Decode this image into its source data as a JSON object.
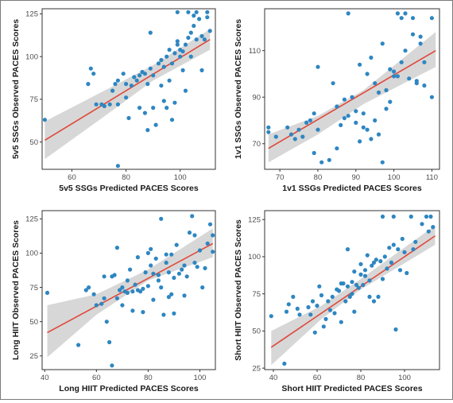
{
  "colors": {
    "points": "#2e86c1",
    "fit_line": "#e0483a",
    "ci_band": "#c9c9c9",
    "frame": "#333333"
  },
  "chart_data": [
    {
      "type": "scatter",
      "xlabel": "5v5 SSGs Predicted PACES Scores",
      "ylabel": "5v5 SSGs Observed PACES Scores",
      "xlim": [
        49,
        113
      ],
      "ylim": [
        34,
        128
      ],
      "xticks": [
        60,
        80,
        100
      ],
      "yticks": [
        50,
        75,
        100,
        125
      ],
      "grid": false,
      "fit": {
        "x": [
          50,
          111
        ],
        "y": [
          51,
          110
        ]
      },
      "ci_band": {
        "x": [
          50,
          72,
          90,
          111
        ],
        "upper": [
          62,
          80,
          95,
          116
        ],
        "lower": [
          40,
          65,
          86,
          104
        ]
      },
      "points": [
        {
          "x": 50,
          "y": 63
        },
        {
          "x": 66,
          "y": 84
        },
        {
          "x": 67,
          "y": 93
        },
        {
          "x": 68,
          "y": 90
        },
        {
          "x": 69,
          "y": 72
        },
        {
          "x": 71,
          "y": 72
        },
        {
          "x": 72,
          "y": 71
        },
        {
          "x": 74,
          "y": 72
        },
        {
          "x": 75,
          "y": 80
        },
        {
          "x": 76,
          "y": 84
        },
        {
          "x": 77,
          "y": 86
        },
        {
          "x": 77,
          "y": 72
        },
        {
          "x": 77,
          "y": 36
        },
        {
          "x": 79,
          "y": 90
        },
        {
          "x": 80,
          "y": 76
        },
        {
          "x": 80,
          "y": 84
        },
        {
          "x": 81,
          "y": 64
        },
        {
          "x": 82,
          "y": 83
        },
        {
          "x": 83,
          "y": 88
        },
        {
          "x": 84,
          "y": 86
        },
        {
          "x": 85,
          "y": 89
        },
        {
          "x": 85,
          "y": 70
        },
        {
          "x": 86,
          "y": 91
        },
        {
          "x": 87,
          "y": 90
        },
        {
          "x": 87,
          "y": 67
        },
        {
          "x": 88,
          "y": 57
        },
        {
          "x": 88,
          "y": 84
        },
        {
          "x": 89,
          "y": 114
        },
        {
          "x": 89,
          "y": 93
        },
        {
          "x": 90,
          "y": 89
        },
        {
          "x": 90,
          "y": 70
        },
        {
          "x": 91,
          "y": 60
        },
        {
          "x": 92,
          "y": 96
        },
        {
          "x": 93,
          "y": 98
        },
        {
          "x": 93,
          "y": 83
        },
        {
          "x": 94,
          "y": 94
        },
        {
          "x": 94,
          "y": 74
        },
        {
          "x": 95,
          "y": 100
        },
        {
          "x": 95,
          "y": 70
        },
        {
          "x": 96,
          "y": 104
        },
        {
          "x": 96,
          "y": 86
        },
        {
          "x": 97,
          "y": 63
        },
        {
          "x": 97,
          "y": 96
        },
        {
          "x": 98,
          "y": 102
        },
        {
          "x": 98,
          "y": 73
        },
        {
          "x": 99,
          "y": 109
        },
        {
          "x": 99,
          "y": 126
        },
        {
          "x": 99,
          "y": 107
        },
        {
          "x": 100,
          "y": 100
        },
        {
          "x": 100,
          "y": 104
        },
        {
          "x": 101,
          "y": 92
        },
        {
          "x": 101,
          "y": 103
        },
        {
          "x": 102,
          "y": 107
        },
        {
          "x": 102,
          "y": 80
        },
        {
          "x": 103,
          "y": 111
        },
        {
          "x": 103,
          "y": 126
        },
        {
          "x": 104,
          "y": 100
        },
        {
          "x": 104,
          "y": 114
        },
        {
          "x": 105,
          "y": 124
        },
        {
          "x": 105,
          "y": 118
        },
        {
          "x": 106,
          "y": 110
        },
        {
          "x": 106,
          "y": 126
        },
        {
          "x": 107,
          "y": 122
        },
        {
          "x": 108,
          "y": 92
        },
        {
          "x": 109,
          "y": 110
        },
        {
          "x": 110,
          "y": 123
        },
        {
          "x": 110,
          "y": 126
        },
        {
          "x": 111,
          "y": 115
        },
        {
          "x": 108,
          "y": 112
        }
      ]
    },
    {
      "type": "scatter",
      "xlabel": "1v1 SSGs Predicted PACES Scores",
      "ylabel": "1v1 SSGs Observed PACES Scores",
      "xlim": [
        66,
        112
      ],
      "ylim": [
        59,
        128
      ],
      "xticks": [
        70,
        80,
        90,
        100,
        110
      ],
      "yticks": [
        70,
        90,
        110
      ],
      "grid": false,
      "fit": {
        "x": [
          67,
          111
        ],
        "y": [
          68,
          110
        ]
      },
      "ci_band": {
        "x": [
          67,
          80,
          92,
          111
        ],
        "upper": [
          74,
          82,
          93,
          118
        ],
        "lower": [
          62,
          74,
          87,
          103
        ]
      },
      "points": [
        {
          "x": 67,
          "y": 75
        },
        {
          "x": 67,
          "y": 77
        },
        {
          "x": 69,
          "y": 73
        },
        {
          "x": 72,
          "y": 77
        },
        {
          "x": 73,
          "y": 74
        },
        {
          "x": 74,
          "y": 72
        },
        {
          "x": 75,
          "y": 76
        },
        {
          "x": 76,
          "y": 73
        },
        {
          "x": 77,
          "y": 79
        },
        {
          "x": 78,
          "y": 80
        },
        {
          "x": 79,
          "y": 83
        },
        {
          "x": 79,
          "y": 66
        },
        {
          "x": 80,
          "y": 76
        },
        {
          "x": 80,
          "y": 103
        },
        {
          "x": 81,
          "y": 62
        },
        {
          "x": 83,
          "y": 63
        },
        {
          "x": 84,
          "y": 96
        },
        {
          "x": 85,
          "y": 68
        },
        {
          "x": 85,
          "y": 86
        },
        {
          "x": 86,
          "y": 78
        },
        {
          "x": 87,
          "y": 89
        },
        {
          "x": 87,
          "y": 81
        },
        {
          "x": 88,
          "y": 126
        },
        {
          "x": 88,
          "y": 82
        },
        {
          "x": 89,
          "y": 90
        },
        {
          "x": 90,
          "y": 84
        },
        {
          "x": 90,
          "y": 79
        },
        {
          "x": 91,
          "y": 104
        },
        {
          "x": 91,
          "y": 71
        },
        {
          "x": 92,
          "y": 83
        },
        {
          "x": 92,
          "y": 77
        },
        {
          "x": 93,
          "y": 100
        },
        {
          "x": 93,
          "y": 76
        },
        {
          "x": 94,
          "y": 107
        },
        {
          "x": 94,
          "y": 72
        },
        {
          "x": 95,
          "y": 96
        },
        {
          "x": 95,
          "y": 80
        },
        {
          "x": 96,
          "y": 92
        },
        {
          "x": 96,
          "y": 74
        },
        {
          "x": 97,
          "y": 113
        },
        {
          "x": 97,
          "y": 62
        },
        {
          "x": 98,
          "y": 85
        },
        {
          "x": 98,
          "y": 93
        },
        {
          "x": 99,
          "y": 88
        },
        {
          "x": 99,
          "y": 102
        },
        {
          "x": 100,
          "y": 99
        },
        {
          "x": 100,
          "y": 101
        },
        {
          "x": 101,
          "y": 126
        },
        {
          "x": 101,
          "y": 99
        },
        {
          "x": 102,
          "y": 124
        },
        {
          "x": 102,
          "y": 105
        },
        {
          "x": 103,
          "y": 126
        },
        {
          "x": 103,
          "y": 110
        },
        {
          "x": 104,
          "y": 98
        },
        {
          "x": 105,
          "y": 124
        },
        {
          "x": 105,
          "y": 117
        },
        {
          "x": 106,
          "y": 96
        },
        {
          "x": 106,
          "y": 97
        },
        {
          "x": 107,
          "y": 116
        },
        {
          "x": 107,
          "y": 113
        },
        {
          "x": 108,
          "y": 95
        },
        {
          "x": 108,
          "y": 105
        },
        {
          "x": 110,
          "y": 124
        },
        {
          "x": 110,
          "y": 90
        }
      ]
    },
    {
      "type": "scatter",
      "xlabel": "Long HIIT Predicted PACES Scores",
      "ylabel": "Long HIIT Observed PACES Scores",
      "xlim": [
        39,
        106
      ],
      "ylim": [
        15,
        131
      ],
      "xticks": [
        40,
        60,
        80,
        100
      ],
      "yticks": [
        25,
        50,
        75,
        100,
        125
      ],
      "grid": false,
      "fit": {
        "x": [
          41,
          105
        ],
        "y": [
          42,
          107
        ]
      },
      "ci_band": {
        "x": [
          41,
          60,
          80,
          105
        ],
        "upper": [
          62,
          70,
          88,
          118
        ],
        "lower": [
          24,
          55,
          80,
          97
        ]
      },
      "points": [
        {
          "x": 41,
          "y": 71
        },
        {
          "x": 53,
          "y": 33
        },
        {
          "x": 56,
          "y": 73
        },
        {
          "x": 57,
          "y": 75
        },
        {
          "x": 59,
          "y": 70
        },
        {
          "x": 60,
          "y": 62
        },
        {
          "x": 62,
          "y": 63
        },
        {
          "x": 63,
          "y": 83
        },
        {
          "x": 63,
          "y": 67
        },
        {
          "x": 64,
          "y": 50
        },
        {
          "x": 65,
          "y": 35
        },
        {
          "x": 66,
          "y": 83
        },
        {
          "x": 66,
          "y": 18
        },
        {
          "x": 67,
          "y": 84
        },
        {
          "x": 68,
          "y": 104
        },
        {
          "x": 68,
          "y": 67
        },
        {
          "x": 69,
          "y": 73
        },
        {
          "x": 70,
          "y": 62
        },
        {
          "x": 70,
          "y": 75
        },
        {
          "x": 71,
          "y": 72
        },
        {
          "x": 72,
          "y": 80
        },
        {
          "x": 72,
          "y": 71
        },
        {
          "x": 73,
          "y": 88
        },
        {
          "x": 74,
          "y": 72
        },
        {
          "x": 74,
          "y": 58
        },
        {
          "x": 75,
          "y": 77
        },
        {
          "x": 76,
          "y": 97
        },
        {
          "x": 76,
          "y": 73
        },
        {
          "x": 77,
          "y": 72
        },
        {
          "x": 78,
          "y": 74
        },
        {
          "x": 78,
          "y": 57
        },
        {
          "x": 79,
          "y": 86
        },
        {
          "x": 80,
          "y": 100
        },
        {
          "x": 80,
          "y": 76
        },
        {
          "x": 81,
          "y": 103
        },
        {
          "x": 81,
          "y": 91
        },
        {
          "x": 82,
          "y": 85
        },
        {
          "x": 82,
          "y": 66
        },
        {
          "x": 83,
          "y": 96
        },
        {
          "x": 84,
          "y": 80
        },
        {
          "x": 84,
          "y": 84
        },
        {
          "x": 85,
          "y": 125
        },
        {
          "x": 85,
          "y": 75
        },
        {
          "x": 86,
          "y": 55
        },
        {
          "x": 87,
          "y": 99
        },
        {
          "x": 87,
          "y": 93
        },
        {
          "x": 88,
          "y": 86
        },
        {
          "x": 88,
          "y": 68
        },
        {
          "x": 89,
          "y": 99
        },
        {
          "x": 89,
          "y": 70
        },
        {
          "x": 90,
          "y": 82
        },
        {
          "x": 90,
          "y": 56
        },
        {
          "x": 91,
          "y": 106
        },
        {
          "x": 92,
          "y": 85
        },
        {
          "x": 93,
          "y": 88
        },
        {
          "x": 94,
          "y": 91
        },
        {
          "x": 94,
          "y": 69
        },
        {
          "x": 95,
          "y": 83
        },
        {
          "x": 96,
          "y": 115
        },
        {
          "x": 97,
          "y": 127
        },
        {
          "x": 98,
          "y": 93
        },
        {
          "x": 98,
          "y": 113
        },
        {
          "x": 99,
          "y": 90
        },
        {
          "x": 100,
          "y": 102
        },
        {
          "x": 101,
          "y": 75
        },
        {
          "x": 102,
          "y": 89
        },
        {
          "x": 103,
          "y": 107
        },
        {
          "x": 104,
          "y": 121
        },
        {
          "x": 105,
          "y": 113
        },
        {
          "x": 105,
          "y": 101
        }
      ]
    },
    {
      "type": "scatter",
      "xlabel": "Short HIIT Predicted PACES Scores",
      "ylabel": "Short HIIT Observed PACES Scores",
      "xlim": [
        36,
        116
      ],
      "ylim": [
        24,
        131
      ],
      "xticks": [
        40,
        60,
        80,
        100
      ],
      "yticks": [
        25,
        50,
        75,
        100,
        125
      ],
      "grid": false,
      "fit": {
        "x": [
          39,
          114
        ],
        "y": [
          39,
          114
        ]
      },
      "ci_band": {
        "x": [
          39,
          62,
          80,
          114
        ],
        "upper": [
          50,
          67,
          85,
          121
        ],
        "lower": [
          27,
          58,
          78,
          108
        ]
      },
      "points": [
        {
          "x": 39,
          "y": 60
        },
        {
          "x": 45,
          "y": 28
        },
        {
          "x": 46,
          "y": 63
        },
        {
          "x": 47,
          "y": 68
        },
        {
          "x": 49,
          "y": 73
        },
        {
          "x": 51,
          "y": 65
        },
        {
          "x": 52,
          "y": 61
        },
        {
          "x": 56,
          "y": 66
        },
        {
          "x": 57,
          "y": 61
        },
        {
          "x": 58,
          "y": 70
        },
        {
          "x": 59,
          "y": 49
        },
        {
          "x": 60,
          "y": 67
        },
        {
          "x": 61,
          "y": 80
        },
        {
          "x": 62,
          "y": 74
        },
        {
          "x": 63,
          "y": 53
        },
        {
          "x": 64,
          "y": 58
        },
        {
          "x": 65,
          "y": 70
        },
        {
          "x": 66,
          "y": 64
        },
        {
          "x": 67,
          "y": 73
        },
        {
          "x": 68,
          "y": 62
        },
        {
          "x": 69,
          "y": 78
        },
        {
          "x": 70,
          "y": 77
        },
        {
          "x": 71,
          "y": 56
        },
        {
          "x": 71,
          "y": 82
        },
        {
          "x": 72,
          "y": 82
        },
        {
          "x": 73,
          "y": 70
        },
        {
          "x": 74,
          "y": 105
        },
        {
          "x": 74,
          "y": 80
        },
        {
          "x": 75,
          "y": 73
        },
        {
          "x": 76,
          "y": 83
        },
        {
          "x": 76,
          "y": 75
        },
        {
          "x": 77,
          "y": 90
        },
        {
          "x": 77,
          "y": 63
        },
        {
          "x": 78,
          "y": 81
        },
        {
          "x": 79,
          "y": 79
        },
        {
          "x": 80,
          "y": 95
        },
        {
          "x": 80,
          "y": 88
        },
        {
          "x": 81,
          "y": 81
        },
        {
          "x": 82,
          "y": 87
        },
        {
          "x": 82,
          "y": 91
        },
        {
          "x": 83,
          "y": 101
        },
        {
          "x": 84,
          "y": 84
        },
        {
          "x": 84,
          "y": 73
        },
        {
          "x": 85,
          "y": 94
        },
        {
          "x": 86,
          "y": 96
        },
        {
          "x": 86,
          "y": 70
        },
        {
          "x": 87,
          "y": 98
        },
        {
          "x": 88,
          "y": 73
        },
        {
          "x": 89,
          "y": 97
        },
        {
          "x": 90,
          "y": 85
        },
        {
          "x": 90,
          "y": 127
        },
        {
          "x": 91,
          "y": 100
        },
        {
          "x": 92,
          "y": 92
        },
        {
          "x": 93,
          "y": 106
        },
        {
          "x": 94,
          "y": 96
        },
        {
          "x": 95,
          "y": 127
        },
        {
          "x": 95,
          "y": 108
        },
        {
          "x": 96,
          "y": 51
        },
        {
          "x": 97,
          "y": 105
        },
        {
          "x": 98,
          "y": 91
        },
        {
          "x": 99,
          "y": 112
        },
        {
          "x": 100,
          "y": 103
        },
        {
          "x": 101,
          "y": 89
        },
        {
          "x": 103,
          "y": 127
        },
        {
          "x": 104,
          "y": 105
        },
        {
          "x": 105,
          "y": 110
        },
        {
          "x": 108,
          "y": 122
        },
        {
          "x": 110,
          "y": 127
        },
        {
          "x": 112,
          "y": 127
        },
        {
          "x": 113,
          "y": 120
        },
        {
          "x": 111,
          "y": 117
        }
      ]
    }
  ]
}
